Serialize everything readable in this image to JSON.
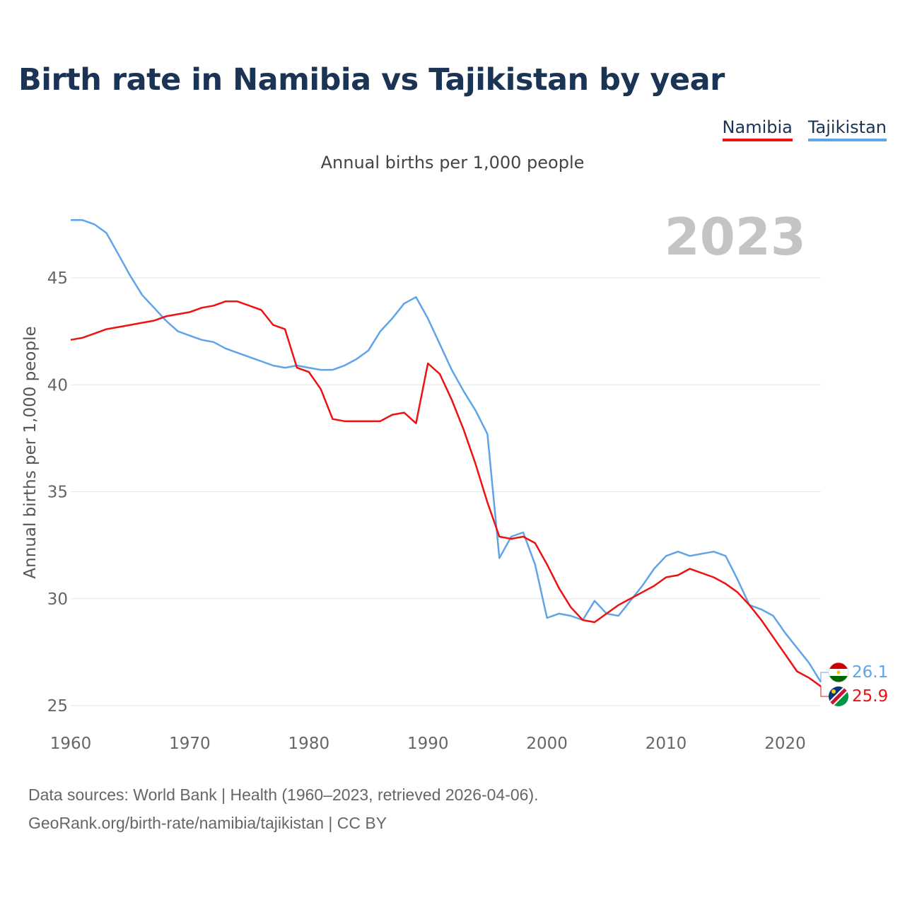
{
  "title": "Birth rate in Namibia vs Tajikistan by year",
  "subtitle": "Annual births per 1,000 people",
  "legend": {
    "namibia": "Namibia",
    "tajikistan": "Tajikistan"
  },
  "colors": {
    "namibia": "#ee1111",
    "tajikistan": "#5da4e8",
    "year_label": "#c4c4c4",
    "title": "#1b3354"
  },
  "footer": {
    "line1": "Data sources: World Bank | Health (1960–2023, retrieved 2026-04-06).",
    "line2": "GeoRank.org/birth-rate/namibia/tajikistan | CC BY"
  },
  "chart_data": {
    "type": "line",
    "title": "Birth rate in Namibia vs Tajikistan by year",
    "xlabel": "",
    "ylabel": "Annual births per 1,000 people",
    "year_label": "2023",
    "xlim": [
      1960,
      2023
    ],
    "ylim": [
      25,
      48.5
    ],
    "x_ticks": [
      1960,
      1970,
      1980,
      1990,
      2000,
      2010,
      2020
    ],
    "y_ticks": [
      25,
      30,
      35,
      40,
      45
    ],
    "grid": true,
    "x": [
      1960,
      1961,
      1962,
      1963,
      1964,
      1965,
      1966,
      1967,
      1968,
      1969,
      1970,
      1971,
      1972,
      1973,
      1974,
      1975,
      1976,
      1977,
      1978,
      1979,
      1980,
      1981,
      1982,
      1983,
      1984,
      1985,
      1986,
      1987,
      1988,
      1989,
      1990,
      1991,
      1992,
      1993,
      1994,
      1995,
      1996,
      1997,
      1998,
      1999,
      2000,
      2001,
      2002,
      2003,
      2004,
      2005,
      2006,
      2007,
      2008,
      2009,
      2010,
      2011,
      2012,
      2013,
      2014,
      2015,
      2016,
      2017,
      2018,
      2019,
      2020,
      2021,
      2022,
      2023
    ],
    "series": [
      {
        "name": "Namibia",
        "end_label": "25.9",
        "values": [
          42.1,
          42.2,
          42.4,
          42.6,
          42.7,
          42.8,
          42.9,
          43.0,
          43.2,
          43.3,
          43.4,
          43.6,
          43.7,
          43.9,
          43.9,
          43.7,
          43.5,
          42.8,
          42.6,
          40.8,
          40.6,
          39.8,
          38.4,
          38.3,
          38.3,
          38.3,
          38.3,
          38.6,
          38.7,
          38.2,
          41.0,
          40.5,
          39.3,
          37.9,
          36.3,
          34.5,
          32.9,
          32.8,
          32.9,
          32.6,
          31.6,
          30.5,
          29.6,
          29.0,
          28.9,
          29.3,
          29.7,
          30.0,
          30.3,
          30.6,
          31.0,
          31.1,
          31.4,
          31.2,
          31.0,
          30.7,
          30.3,
          29.7,
          29.0,
          28.2,
          27.4,
          26.6,
          26.3,
          25.9
        ]
      },
      {
        "name": "Tajikistan",
        "end_label": "26.1",
        "values": [
          47.7,
          47.7,
          47.5,
          47.1,
          46.1,
          45.1,
          44.2,
          43.6,
          43.0,
          42.5,
          42.3,
          42.1,
          42.0,
          41.7,
          41.5,
          41.3,
          41.1,
          40.9,
          40.8,
          40.9,
          40.8,
          40.7,
          40.7,
          40.9,
          41.2,
          41.6,
          42.5,
          43.1,
          43.8,
          44.1,
          43.1,
          41.9,
          40.7,
          39.7,
          38.8,
          37.7,
          31.9,
          32.9,
          33.1,
          31.6,
          29.1,
          29.3,
          29.2,
          29.0,
          29.9,
          29.3,
          29.2,
          29.9,
          30.6,
          31.4,
          32.0,
          32.2,
          32.0,
          32.1,
          32.2,
          32.0,
          30.9,
          29.7,
          29.5,
          29.2,
          28.4,
          27.7,
          27.0,
          26.1
        ]
      }
    ]
  }
}
